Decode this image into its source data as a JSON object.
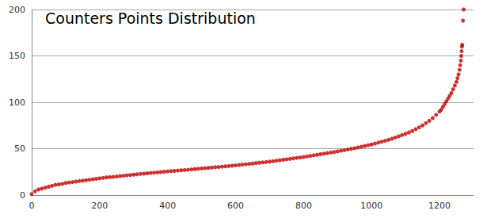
{
  "chart_data": {
    "type": "scatter",
    "title": "Counters Points Distribution",
    "x": [
      0,
      10,
      20,
      30,
      40,
      50,
      60,
      70,
      80,
      90,
      100,
      110,
      120,
      130,
      140,
      150,
      160,
      170,
      180,
      190,
      200,
      210,
      220,
      230,
      240,
      250,
      260,
      270,
      280,
      290,
      300,
      310,
      320,
      330,
      340,
      350,
      360,
      370,
      380,
      390,
      400,
      410,
      420,
      430,
      440,
      450,
      460,
      470,
      480,
      490,
      500,
      510,
      520,
      530,
      540,
      550,
      560,
      570,
      580,
      590,
      600,
      610,
      620,
      630,
      640,
      650,
      660,
      670,
      680,
      690,
      700,
      710,
      720,
      730,
      740,
      750,
      760,
      770,
      780,
      790,
      800,
      810,
      820,
      830,
      840,
      850,
      860,
      870,
      880,
      890,
      900,
      910,
      920,
      930,
      940,
      950,
      960,
      970,
      980,
      990,
      1000,
      1010,
      1020,
      1030,
      1040,
      1050,
      1060,
      1070,
      1080,
      1090,
      1100,
      1110,
      1120,
      1130,
      1140,
      1150,
      1160,
      1170,
      1180,
      1190,
      1200,
      1205,
      1210,
      1215,
      1220,
      1225,
      1230,
      1235,
      1240,
      1245,
      1250,
      1253,
      1256,
      1259,
      1261,
      1263,
      1264,
      1265,
      1266,
      1267,
      1269,
      1271
    ],
    "values": [
      1,
      4,
      6,
      7,
      8,
      9,
      10,
      11,
      11.5,
      12,
      13,
      13.5,
      14,
      14.5,
      15,
      15.5,
      16,
      16.5,
      17,
      17.5,
      18,
      18.5,
      19,
      19.3,
      19.6,
      20,
      20.4,
      20.8,
      21.2,
      21.6,
      22,
      22.4,
      22.8,
      23.1,
      23.4,
      23.8,
      24.1,
      24.4,
      24.8,
      25.1,
      25.5,
      25.8,
      26.1,
      26.4,
      26.7,
      27,
      27.3,
      27.6,
      28,
      28.3,
      28.7,
      29,
      29.3,
      29.6,
      30,
      30.3,
      30.6,
      31,
      31.3,
      31.6,
      32,
      32.4,
      32.8,
      33.2,
      33.6,
      34,
      34.4,
      34.8,
      35.2,
      35.6,
      36,
      36.5,
      37,
      37.5,
      38,
      38.5,
      39,
      39.5,
      40,
      40.5,
      41,
      41.6,
      42.2,
      42.8,
      43.4,
      44,
      44.6,
      45.2,
      45.8,
      46.4,
      47,
      47.7,
      48.4,
      49.1,
      49.8,
      50.5,
      51.3,
      52.1,
      52.9,
      53.7,
      54.5,
      55.5,
      56.5,
      57.5,
      58.5,
      59.5,
      60.7,
      62,
      63.3,
      64.7,
      66,
      67.5,
      69,
      71,
      73,
      75,
      77.5,
      80,
      83,
      86.5,
      90,
      92,
      95,
      98,
      101,
      104,
      107,
      110,
      114,
      118,
      122,
      126,
      130,
      135,
      140,
      145,
      150,
      155,
      160,
      162,
      188,
      200
    ],
    "color": "#c00000",
    "marker": "circle",
    "xlim": [
      0,
      1300
    ],
    "xticks": [
      0,
      200,
      400,
      600,
      800,
      1000,
      1200
    ],
    "ylim": [
      0,
      200
    ],
    "yticks": [
      0,
      50,
      100,
      150,
      200
    ],
    "grid": true
  }
}
